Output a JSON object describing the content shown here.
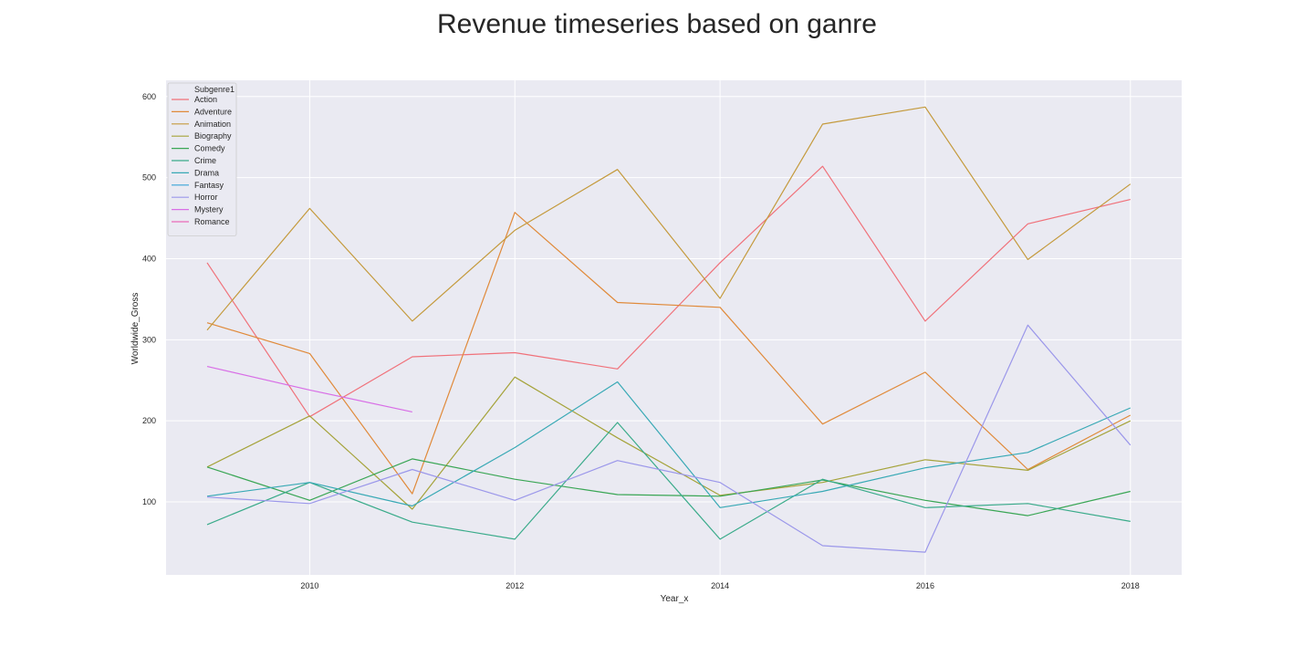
{
  "chart_data": {
    "type": "line",
    "title": "Revenue timeseries based on ganre",
    "xlabel": "Year_x",
    "ylabel": "Worldwide_Gross",
    "xlim": [
      2008.6,
      2018.5
    ],
    "ylim": [
      10,
      620
    ],
    "xticks": [
      2010,
      2012,
      2014,
      2016,
      2018
    ],
    "yticks": [
      100,
      200,
      300,
      400,
      500,
      600
    ],
    "grid": true,
    "legend": {
      "title": "Subgenre1",
      "placement": "top-left"
    },
    "x": [
      2009,
      2010,
      2011,
      2012,
      2013,
      2014,
      2015,
      2016,
      2017,
      2018
    ],
    "series": [
      {
        "name": "Action",
        "color": "#f0717a",
        "values": [
          395,
          205,
          279,
          284,
          264,
          395,
          514,
          323,
          443,
          473
        ]
      },
      {
        "name": "Adventure",
        "color": "#e08a3a",
        "values": [
          321,
          283,
          110,
          457,
          346,
          340,
          196,
          260,
          140,
          207
        ]
      },
      {
        "name": "Animation",
        "color": "#c49a3c",
        "values": [
          312,
          462,
          323,
          435,
          510,
          351,
          566,
          587,
          399,
          492
        ]
      },
      {
        "name": "Biography",
        "color": "#a5a33a",
        "values": [
          143,
          206,
          91,
          254,
          179,
          108,
          124,
          152,
          139,
          200
        ]
      },
      {
        "name": "Comedy",
        "color": "#3aa655",
        "values": [
          143,
          102,
          153,
          128,
          109,
          107,
          127,
          102,
          83,
          113
        ]
      },
      {
        "name": "Crime",
        "color": "#3aab8a",
        "values": [
          72,
          124,
          75,
          54,
          198,
          54,
          128,
          93,
          98,
          76
        ]
      },
      {
        "name": "Drama",
        "color": "#38a9b5",
        "values": [
          107,
          124,
          95,
          167,
          248,
          93,
          113,
          142,
          161,
          216
        ]
      },
      {
        "name": "Fantasy",
        "color": "#3aa5d8",
        "values": [
          null,
          null,
          null,
          null,
          null,
          null,
          null,
          null,
          null,
          null
        ]
      },
      {
        "name": "Horror",
        "color": "#9b97ea",
        "values": [
          106,
          98,
          140,
          102,
          151,
          124,
          46,
          38,
          318,
          170
        ]
      },
      {
        "name": "Mystery",
        "color": "#d86ee6",
        "values": [
          267,
          238,
          211,
          null,
          null,
          null,
          null,
          null,
          null,
          null
        ]
      },
      {
        "name": "Romance",
        "color": "#ea6ab8",
        "values": [
          null,
          null,
          null,
          null,
          null,
          null,
          null,
          null,
          null,
          null
        ]
      }
    ]
  }
}
